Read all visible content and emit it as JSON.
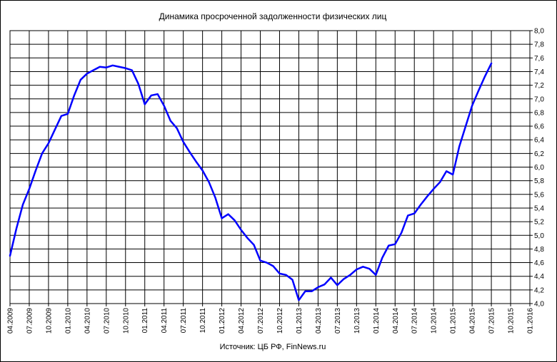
{
  "chart_data": {
    "type": "line",
    "title": "Динамика просроченной задолженности физических лиц",
    "source": "Источник: ЦБ РФ, FinNews.ru",
    "xlabel": "",
    "ylabel": "",
    "x_tick_labels": [
      "04.2009",
      "07.2009",
      "10.2009",
      "01.2010",
      "04.2010",
      "07.2010",
      "10.2010",
      "01.2011",
      "04.2011",
      "07.2011",
      "10.2011",
      "01.2012",
      "04.2012",
      "07.2012",
      "10.2012",
      "01.2013",
      "04.2013",
      "07.2013",
      "10.2013",
      "01.2014",
      "04.2014",
      "07.2014",
      "10.2014",
      "01.2015",
      "04.2015",
      "07.2015",
      "10.2015",
      "01.2016"
    ],
    "y_tick_labels": [
      "4,0",
      "4,2",
      "4,4",
      "4,6",
      "4,8",
      "5,0",
      "5,2",
      "5,4",
      "5,6",
      "5,8",
      "6,0",
      "6,2",
      "6,4",
      "6,6",
      "6,8",
      "7,0",
      "7,2",
      "7,4",
      "7,6",
      "7,8",
      "8,0"
    ],
    "ylim": [
      4.0,
      8.0
    ],
    "y_axis_position": "right",
    "grid": true,
    "legend": "none",
    "line_color": "#0000ff",
    "series": [
      {
        "x": [
          "04.2009",
          "05.2009",
          "06.2009",
          "07.2009",
          "08.2009",
          "09.2009",
          "10.2009",
          "11.2009",
          "12.2009",
          "01.2010",
          "02.2010",
          "03.2010",
          "04.2010",
          "05.2010",
          "06.2010",
          "07.2010",
          "08.2010",
          "09.2010",
          "10.2010",
          "11.2010",
          "12.2010",
          "01.2011",
          "02.2011",
          "03.2011",
          "04.2011",
          "05.2011",
          "06.2011",
          "07.2011",
          "08.2011",
          "09.2011",
          "10.2011",
          "11.2011",
          "12.2011",
          "01.2012",
          "02.2012",
          "03.2012",
          "04.2012",
          "05.2012",
          "06.2012",
          "07.2012",
          "08.2012",
          "09.2012",
          "10.2012",
          "11.2012",
          "12.2012",
          "01.2013",
          "02.2013",
          "03.2013",
          "04.2013",
          "05.2013",
          "06.2013",
          "07.2013",
          "08.2013",
          "09.2013",
          "10.2013",
          "11.2013",
          "12.2013",
          "01.2014",
          "02.2014",
          "03.2014",
          "04.2014",
          "05.2014",
          "06.2014",
          "07.2014",
          "08.2014",
          "09.2014",
          "10.2014",
          "11.2014",
          "12.2014",
          "01.2015",
          "02.2015",
          "03.2015",
          "04.2015",
          "05.2015",
          "06.2015",
          "07.2015"
        ],
        "values": [
          4.7,
          5.1,
          5.45,
          5.68,
          5.95,
          6.2,
          6.35,
          6.55,
          6.75,
          6.78,
          7.05,
          7.28,
          7.37,
          7.42,
          7.47,
          7.46,
          7.49,
          7.47,
          7.45,
          7.42,
          7.22,
          6.92,
          7.05,
          7.07,
          6.9,
          6.68,
          6.57,
          6.37,
          6.22,
          6.08,
          5.95,
          5.78,
          5.55,
          5.25,
          5.31,
          5.22,
          5.08,
          4.96,
          4.86,
          4.63,
          4.6,
          4.55,
          4.44,
          4.42,
          4.35,
          4.05,
          4.18,
          4.18,
          4.24,
          4.28,
          4.38,
          4.27,
          4.36,
          4.42,
          4.5,
          4.54,
          4.51,
          4.42,
          4.67,
          4.85,
          4.87,
          5.04,
          5.29,
          5.32,
          5.45,
          5.57,
          5.68,
          5.78,
          5.94,
          5.89,
          6.3,
          6.6,
          6.9,
          7.12,
          7.33,
          7.52
        ]
      }
    ]
  }
}
